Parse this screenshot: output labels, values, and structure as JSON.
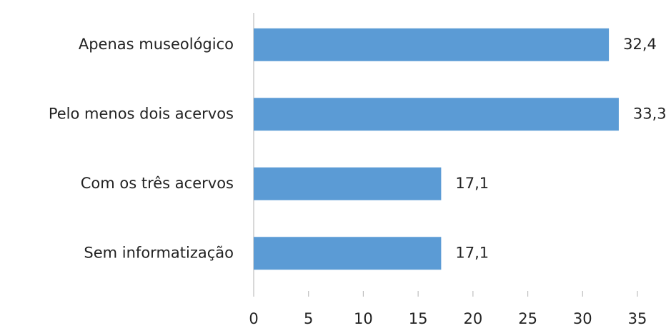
{
  "chart_data": {
    "type": "bar",
    "orientation": "horizontal",
    "categories": [
      "Apenas museológico",
      "Pelo menos dois acervos",
      "Com os três acervos",
      "Sem informatização"
    ],
    "values": [
      32.4,
      33.3,
      17.1,
      17.1
    ],
    "value_labels": [
      "32,4",
      "33,3",
      "17,1",
      "17,1"
    ],
    "color": "#5b9bd5",
    "xlim": [
      0,
      35
    ],
    "xticks": [
      0,
      5,
      10,
      15,
      20,
      25,
      30,
      35
    ]
  }
}
